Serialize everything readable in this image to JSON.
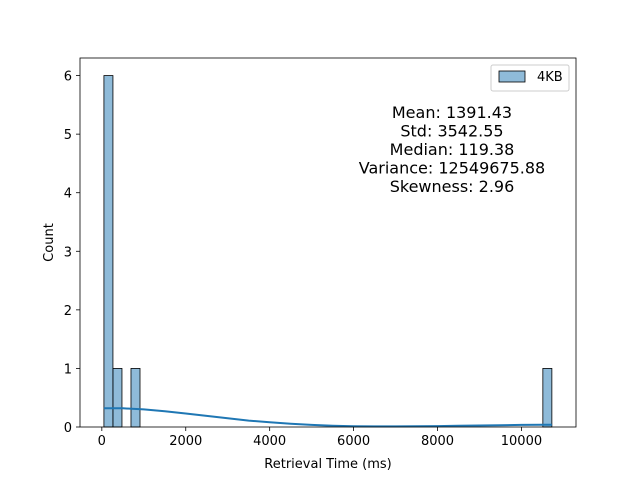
{
  "chart_data": {
    "type": "bar",
    "subtype": "histogram",
    "xlabel": "Retrieval Time (ms)",
    "ylabel": "Count",
    "xlim": [
      -520,
      11300
    ],
    "ylim": [
      0,
      6.3
    ],
    "xticks": [
      0,
      2000,
      4000,
      6000,
      8000,
      10000
    ],
    "xtick_labels": [
      "0",
      "2000",
      "4000",
      "6000",
      "8000",
      "10000"
    ],
    "yticks": [
      0,
      1,
      2,
      3,
      4,
      5,
      6
    ],
    "ytick_labels": [
      "0",
      "1",
      "2",
      "3",
      "4",
      "5",
      "6"
    ],
    "grid": false,
    "legend_position": "upper right",
    "series": [
      {
        "name": "4KB",
        "color": "#1f77b4",
        "bins": [
          {
            "x0": 50,
            "x1": 265,
            "count": 6
          },
          {
            "x0": 265,
            "x1": 480,
            "count": 1
          },
          {
            "x0": 480,
            "x1": 695,
            "count": 0
          },
          {
            "x0": 695,
            "x1": 910,
            "count": 1
          },
          {
            "x0": 10510,
            "x1": 10725,
            "count": 1
          }
        ],
        "kde": {
          "x": [
            50,
            500,
            1000,
            1500,
            2000,
            2500,
            3000,
            3500,
            4000,
            4500,
            5000,
            5500,
            6000,
            6500,
            7000,
            7500,
            8000,
            8500,
            9000,
            9500,
            10000,
            10500,
            10725
          ],
          "y": [
            0.32,
            0.32,
            0.3,
            0.27,
            0.23,
            0.19,
            0.15,
            0.11,
            0.08,
            0.055,
            0.035,
            0.02,
            0.012,
            0.01,
            0.01,
            0.012,
            0.015,
            0.02,
            0.025,
            0.03,
            0.035,
            0.038,
            0.038
          ]
        }
      }
    ],
    "annotations": [
      "Mean: 1391.43",
      "Std: 3542.55",
      "Median: 119.38",
      "Variance: 12549675.88",
      "Skewness: 2.96"
    ]
  }
}
